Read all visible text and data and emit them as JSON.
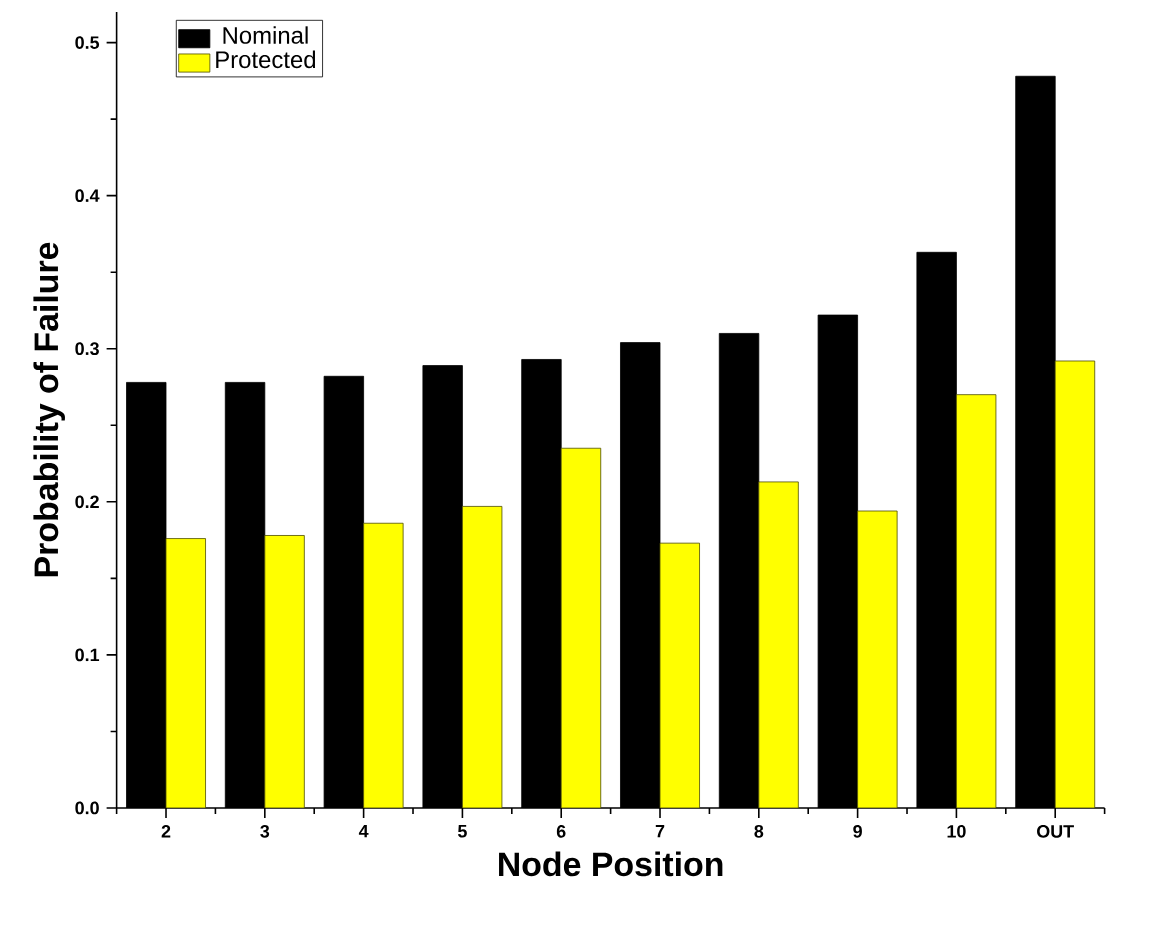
{
  "chart_data": {
    "type": "bar",
    "xlabel": "Node Position",
    "ylabel": "Probability of Failure",
    "categories": [
      "2",
      "3",
      "4",
      "5",
      "6",
      "7",
      "8",
      "9",
      "10",
      "OUT"
    ],
    "series": [
      {
        "name": "Nominal",
        "color": "#000000",
        "values": [
          0.278,
          0.278,
          0.282,
          0.289,
          0.293,
          0.304,
          0.31,
          0.322,
          0.363,
          0.478
        ]
      },
      {
        "name": "Protected",
        "color": "#ffff00",
        "values": [
          0.176,
          0.178,
          0.186,
          0.197,
          0.235,
          0.173,
          0.213,
          0.194,
          0.27,
          0.292
        ]
      }
    ],
    "ylim": [
      0,
      0.52
    ],
    "yticks": [
      "0.0",
      {
        "value": 0.05,
        "label": null
      },
      0.1,
      {
        "value": 0.15,
        "label": null
      },
      0.2,
      {
        "value": 0.25,
        "label": null
      },
      0.3,
      {
        "value": 0.35,
        "label": null
      },
      0.4,
      {
        "value": 0.45,
        "label": null
      },
      0.5
    ],
    "grid": false,
    "legend": "top left"
  }
}
